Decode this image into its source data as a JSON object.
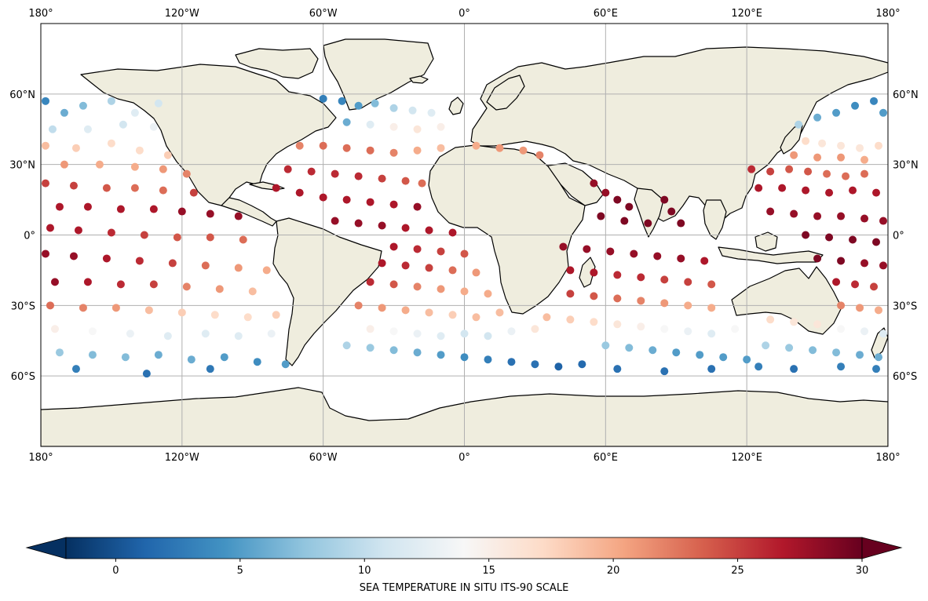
{
  "map": {
    "projection": "PlateCarree",
    "extent": {
      "lon": [
        -180,
        180
      ],
      "lat": [
        -90,
        90
      ]
    },
    "land_color": "#efedde",
    "ocean_color": "#ffffff",
    "coastline_color": "#000000",
    "gridlines": true,
    "lon_ticks": [
      {
        "value": -180,
        "label": "180°"
      },
      {
        "value": -120,
        "label": "120°W"
      },
      {
        "value": -60,
        "label": "60°W"
      },
      {
        "value": 0,
        "label": "0°"
      },
      {
        "value": 60,
        "label": "60°E"
      },
      {
        "value": 120,
        "label": "120°E"
      },
      {
        "value": 180,
        "label": "180°"
      }
    ],
    "lat_ticks": [
      {
        "value": 60,
        "label": "60°N"
      },
      {
        "value": 30,
        "label": "30°N"
      },
      {
        "value": 0,
        "label": "0°"
      },
      {
        "value": -30,
        "label": "30°S"
      },
      {
        "value": -60,
        "label": "60°S"
      }
    ]
  },
  "colorbar": {
    "label": "SEA TEMPERATURE IN SITU ITS-90 SCALE",
    "vmin": -2,
    "vmax": 30,
    "extend": "both",
    "colormap": "RdBu_r",
    "ticks": [
      {
        "value": 0,
        "label": "0"
      },
      {
        "value": 5,
        "label": "5"
      },
      {
        "value": 10,
        "label": "10"
      },
      {
        "value": 15,
        "label": "15"
      },
      {
        "value": 20,
        "label": "20"
      },
      {
        "value": 25,
        "label": "25"
      },
      {
        "value": 30,
        "label": "30"
      }
    ]
  },
  "chart_data": {
    "type": "scatter",
    "x_name": "longitude",
    "y_name": "latitude",
    "color_name": "sea temperature",
    "xlim": [
      -180,
      180
    ],
    "ylim": [
      -90,
      90
    ],
    "clim": [
      -2,
      30
    ],
    "points": [
      [
        -178,
        57,
        3.5
      ],
      [
        -170,
        52,
        6
      ],
      [
        -162,
        55,
        7
      ],
      [
        -150,
        57,
        9
      ],
      [
        -140,
        52,
        12
      ],
      [
        -130,
        56,
        11
      ],
      [
        -175,
        45,
        10
      ],
      [
        -160,
        45,
        12
      ],
      [
        -145,
        47,
        11
      ],
      [
        -132,
        46,
        13
      ],
      [
        -178,
        38,
        19
      ],
      [
        -165,
        37,
        18
      ],
      [
        -150,
        39,
        17
      ],
      [
        -138,
        36,
        17
      ],
      [
        -126,
        34,
        18
      ],
      [
        -170,
        30,
        21
      ],
      [
        -155,
        30,
        20
      ],
      [
        -140,
        29,
        20
      ],
      [
        -128,
        28,
        21
      ],
      [
        -118,
        26,
        22
      ],
      [
        -178,
        22,
        25
      ],
      [
        -166,
        21,
        25
      ],
      [
        -152,
        20,
        24
      ],
      [
        -140,
        20,
        23
      ],
      [
        -128,
        19,
        23
      ],
      [
        -115,
        18,
        25
      ],
      [
        -172,
        12,
        27
      ],
      [
        -160,
        12,
        27
      ],
      [
        -146,
        11,
        27
      ],
      [
        -132,
        11,
        27
      ],
      [
        -120,
        10,
        28
      ],
      [
        -108,
        9,
        28
      ],
      [
        -96,
        8,
        28
      ],
      [
        -176,
        3,
        27
      ],
      [
        -164,
        2,
        27
      ],
      [
        -150,
        1,
        26
      ],
      [
        -136,
        0,
        25
      ],
      [
        -122,
        -1,
        24
      ],
      [
        -108,
        -1,
        24
      ],
      [
        -94,
        -2,
        23
      ],
      [
        -178,
        -8,
        28
      ],
      [
        -166,
        -9,
        28
      ],
      [
        -152,
        -10,
        27
      ],
      [
        -138,
        -11,
        26
      ],
      [
        -124,
        -12,
        25
      ],
      [
        -110,
        -13,
        23
      ],
      [
        -96,
        -14,
        21
      ],
      [
        -84,
        -15,
        20
      ],
      [
        -174,
        -20,
        28
      ],
      [
        -160,
        -20,
        27
      ],
      [
        -146,
        -21,
        26
      ],
      [
        -132,
        -21,
        25
      ],
      [
        -118,
        -22,
        22
      ],
      [
        -104,
        -23,
        21
      ],
      [
        -90,
        -24,
        19
      ],
      [
        -176,
        -30,
        23
      ],
      [
        -162,
        -31,
        22
      ],
      [
        -148,
        -31,
        21
      ],
      [
        -134,
        -32,
        19
      ],
      [
        -120,
        -33,
        18
      ],
      [
        -106,
        -34,
        17
      ],
      [
        -92,
        -35,
        17
      ],
      [
        -80,
        -34,
        18
      ],
      [
        -174,
        -40,
        15
      ],
      [
        -158,
        -41,
        14
      ],
      [
        -142,
        -42,
        13
      ],
      [
        -126,
        -43,
        12
      ],
      [
        -110,
        -42,
        12
      ],
      [
        -96,
        -43,
        12
      ],
      [
        -82,
        -42,
        13
      ],
      [
        -172,
        -50,
        8
      ],
      [
        -158,
        -51,
        7
      ],
      [
        -144,
        -52,
        7
      ],
      [
        -130,
        -51,
        6
      ],
      [
        -116,
        -53,
        6
      ],
      [
        -102,
        -52,
        5
      ],
      [
        -88,
        -54,
        4
      ],
      [
        -76,
        -55,
        5
      ],
      [
        -165,
        -57,
        3
      ],
      [
        -135,
        -59,
        2
      ],
      [
        -108,
        -57,
        2.5
      ],
      [
        -60,
        58,
        3
      ],
      [
        -52,
        57,
        3.5
      ],
      [
        -45,
        55,
        5
      ],
      [
        -38,
        56,
        7
      ],
      [
        -30,
        54,
        9
      ],
      [
        -22,
        53,
        11
      ],
      [
        -14,
        52,
        12
      ],
      [
        -50,
        48,
        6
      ],
      [
        -40,
        47,
        12
      ],
      [
        -30,
        46,
        15
      ],
      [
        -20,
        45,
        16
      ],
      [
        -10,
        46,
        15
      ],
      [
        -70,
        38,
        22
      ],
      [
        -60,
        38,
        23
      ],
      [
        -50,
        37,
        23
      ],
      [
        -40,
        36,
        23
      ],
      [
        -30,
        35,
        22
      ],
      [
        -20,
        36,
        20
      ],
      [
        -10,
        37,
        19
      ],
      [
        -75,
        28,
        26
      ],
      [
        -65,
        27,
        26
      ],
      [
        -55,
        26,
        26
      ],
      [
        -45,
        25,
        26
      ],
      [
        -35,
        24,
        25
      ],
      [
        -25,
        23,
        24
      ],
      [
        -18,
        22,
        23
      ],
      [
        -80,
        20,
        27
      ],
      [
        -70,
        18,
        27
      ],
      [
        -60,
        16,
        27
      ],
      [
        -50,
        15,
        27
      ],
      [
        -40,
        14,
        27
      ],
      [
        -30,
        13,
        27
      ],
      [
        -20,
        12,
        28
      ],
      [
        -55,
        6,
        28
      ],
      [
        -45,
        5,
        28
      ],
      [
        -35,
        4,
        28
      ],
      [
        -25,
        3,
        27
      ],
      [
        -15,
        2,
        27
      ],
      [
        -5,
        1,
        27
      ],
      [
        -30,
        -5,
        27
      ],
      [
        -20,
        -6,
        26
      ],
      [
        -10,
        -7,
        25
      ],
      [
        0,
        -8,
        24
      ],
      [
        -35,
        -12,
        27
      ],
      [
        -25,
        -13,
        26
      ],
      [
        -15,
        -14,
        25
      ],
      [
        -5,
        -15,
        23
      ],
      [
        5,
        -16,
        21
      ],
      [
        -40,
        -20,
        26
      ],
      [
        -30,
        -21,
        24
      ],
      [
        -20,
        -22,
        22
      ],
      [
        -10,
        -23,
        21
      ],
      [
        0,
        -24,
        20
      ],
      [
        10,
        -25,
        20
      ],
      [
        -45,
        -30,
        22
      ],
      [
        -35,
        -31,
        21
      ],
      [
        -25,
        -32,
        20
      ],
      [
        -15,
        -33,
        19
      ],
      [
        -5,
        -34,
        18
      ],
      [
        5,
        -35,
        19
      ],
      [
        15,
        -33,
        19
      ],
      [
        -40,
        -40,
        15
      ],
      [
        -30,
        -41,
        14
      ],
      [
        -20,
        -42,
        13
      ],
      [
        -10,
        -43,
        12
      ],
      [
        0,
        -42,
        11
      ],
      [
        10,
        -43,
        11
      ],
      [
        20,
        -41,
        13
      ],
      [
        30,
        -40,
        16
      ],
      [
        -50,
        -47,
        9
      ],
      [
        -40,
        -48,
        8
      ],
      [
        -30,
        -49,
        7
      ],
      [
        -20,
        -50,
        6
      ],
      [
        -10,
        -51,
        5
      ],
      [
        0,
        -52,
        4
      ],
      [
        10,
        -53,
        3
      ],
      [
        20,
        -54,
        2
      ],
      [
        30,
        -55,
        2
      ],
      [
        40,
        -56,
        1
      ],
      [
        50,
        -55,
        1.5
      ],
      [
        5,
        38,
        20
      ],
      [
        15,
        37,
        21
      ],
      [
        25,
        36,
        21
      ],
      [
        32,
        34,
        22
      ],
      [
        55,
        22,
        28
      ],
      [
        60,
        18,
        28
      ],
      [
        65,
        15,
        29
      ],
      [
        70,
        12,
        29
      ],
      [
        58,
        8,
        29
      ],
      [
        68,
        6,
        29
      ],
      [
        78,
        5,
        29
      ],
      [
        85,
        15,
        29
      ],
      [
        88,
        10,
        29
      ],
      [
        92,
        5,
        29
      ],
      [
        42,
        -5,
        28
      ],
      [
        52,
        -6,
        28
      ],
      [
        62,
        -7,
        28
      ],
      [
        72,
        -8,
        28
      ],
      [
        82,
        -9,
        28
      ],
      [
        92,
        -10,
        28
      ],
      [
        102,
        -11,
        27
      ],
      [
        45,
        -15,
        27
      ],
      [
        55,
        -16,
        27
      ],
      [
        65,
        -17,
        26
      ],
      [
        75,
        -18,
        26
      ],
      [
        85,
        -19,
        25
      ],
      [
        95,
        -20,
        25
      ],
      [
        105,
        -21,
        24
      ],
      [
        45,
        -25,
        25
      ],
      [
        55,
        -26,
        24
      ],
      [
        65,
        -27,
        23
      ],
      [
        75,
        -28,
        22
      ],
      [
        85,
        -29,
        21
      ],
      [
        95,
        -30,
        20
      ],
      [
        105,
        -31,
        20
      ],
      [
        35,
        -35,
        19
      ],
      [
        45,
        -36,
        18
      ],
      [
        55,
        -37,
        17
      ],
      [
        65,
        -38,
        16
      ],
      [
        75,
        -39,
        15
      ],
      [
        85,
        -40,
        14
      ],
      [
        95,
        -41,
        13
      ],
      [
        105,
        -42,
        12
      ],
      [
        115,
        -40,
        14
      ],
      [
        60,
        -47,
        8
      ],
      [
        70,
        -48,
        7
      ],
      [
        80,
        -49,
        6
      ],
      [
        90,
        -50,
        5
      ],
      [
        100,
        -51,
        5
      ],
      [
        110,
        -52,
        5
      ],
      [
        120,
        -53,
        5
      ],
      [
        65,
        -57,
        2
      ],
      [
        85,
        -58,
        2
      ],
      [
        105,
        -57,
        2
      ],
      [
        125,
        -56,
        3
      ],
      [
        122,
        28,
        26
      ],
      [
        130,
        27,
        25
      ],
      [
        138,
        28,
        24
      ],
      [
        146,
        27,
        24
      ],
      [
        154,
        26,
        23
      ],
      [
        162,
        25,
        23
      ],
      [
        170,
        26,
        23
      ],
      [
        125,
        20,
        27
      ],
      [
        135,
        20,
        27
      ],
      [
        145,
        19,
        27
      ],
      [
        155,
        18,
        27
      ],
      [
        165,
        19,
        27
      ],
      [
        175,
        18,
        27
      ],
      [
        130,
        10,
        28
      ],
      [
        140,
        9,
        28
      ],
      [
        150,
        8,
        28
      ],
      [
        160,
        8,
        28
      ],
      [
        170,
        7,
        28
      ],
      [
        178,
        6,
        28
      ],
      [
        145,
        0,
        29
      ],
      [
        155,
        -1,
        29
      ],
      [
        165,
        -2,
        29
      ],
      [
        175,
        -3,
        29
      ],
      [
        150,
        -10,
        29
      ],
      [
        160,
        -11,
        29
      ],
      [
        170,
        -12,
        28
      ],
      [
        178,
        -13,
        28
      ],
      [
        158,
        -20,
        27
      ],
      [
        166,
        -21,
        26
      ],
      [
        174,
        -22,
        25
      ],
      [
        160,
        -30,
        22
      ],
      [
        168,
        -31,
        21
      ],
      [
        176,
        -32,
        20
      ],
      [
        130,
        -36,
        17
      ],
      [
        140,
        -37,
        16
      ],
      [
        150,
        -38,
        16
      ],
      [
        160,
        -40,
        14
      ],
      [
        170,
        -41,
        13
      ],
      [
        178,
        -42,
        12
      ],
      [
        128,
        -47,
        9
      ],
      [
        138,
        -48,
        8
      ],
      [
        148,
        -49,
        7
      ],
      [
        158,
        -50,
        7
      ],
      [
        168,
        -51,
        6
      ],
      [
        176,
        -52,
        6
      ],
      [
        140,
        -57,
        2
      ],
      [
        160,
        -56,
        3
      ],
      [
        175,
        -57,
        3
      ],
      [
        142,
        47,
        9
      ],
      [
        150,
        50,
        6
      ],
      [
        158,
        52,
        5
      ],
      [
        166,
        55,
        4
      ],
      [
        174,
        57,
        3.5
      ],
      [
        178,
        52,
        5
      ],
      [
        145,
        40,
        17
      ],
      [
        152,
        39,
        16
      ],
      [
        160,
        38,
        16
      ],
      [
        168,
        37,
        16
      ],
      [
        176,
        38,
        17
      ],
      [
        140,
        34,
        21
      ],
      [
        150,
        33,
        21
      ],
      [
        160,
        33,
        21
      ],
      [
        170,
        32,
        20
      ]
    ]
  }
}
